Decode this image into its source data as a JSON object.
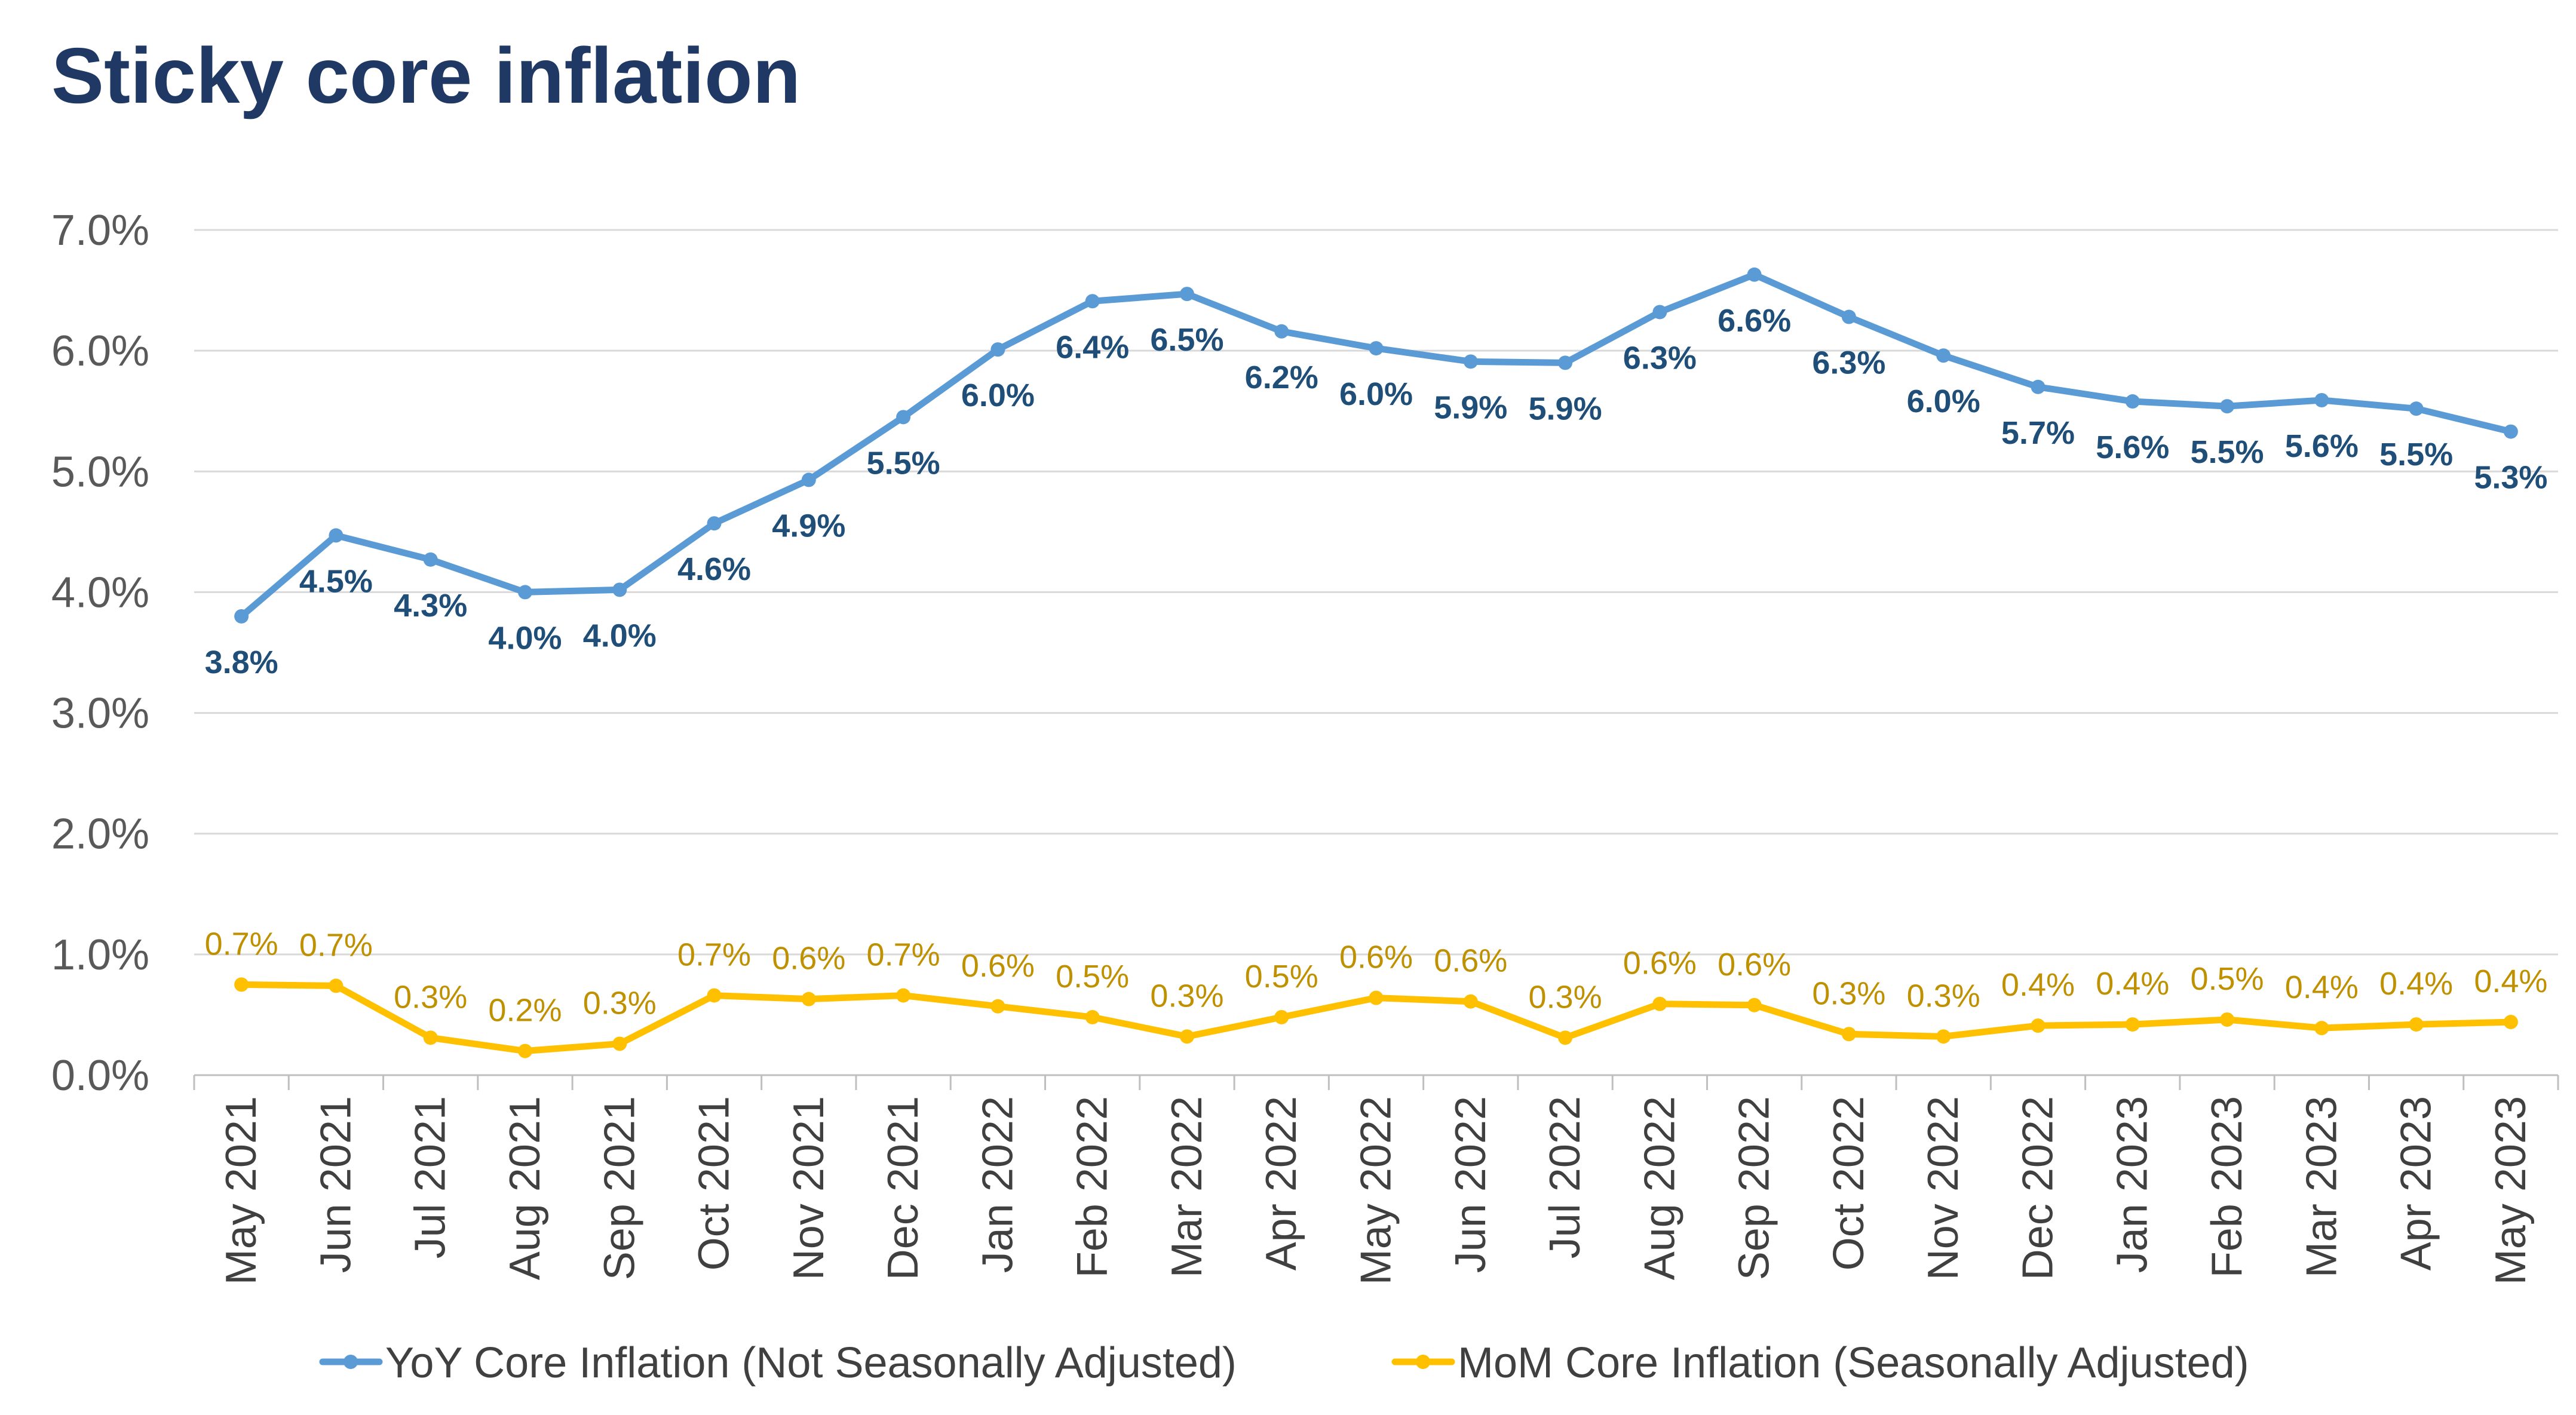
{
  "title": "Sticky core inflation",
  "colors": {
    "yoy_line": "#5b9bd5",
    "yoy_label": "#1f4e79",
    "mom_line": "#ffc000",
    "mom_label": "#bf9000",
    "title": "#1f3864",
    "grid": "#d9d9d9",
    "axis": "#bfbfbf"
  },
  "chart_data": {
    "type": "line",
    "title": "Sticky core inflation",
    "xlabel": "",
    "ylabel": "",
    "ylim": [
      0,
      7
    ],
    "yticks": [
      "0.0%",
      "1.0%",
      "2.0%",
      "3.0%",
      "4.0%",
      "5.0%",
      "6.0%",
      "7.0%"
    ],
    "grid": true,
    "legend_position": "bottom",
    "categories": [
      "May 2021",
      "Jun 2021",
      "Jul 2021",
      "Aug 2021",
      "Sep 2021",
      "Oct 2021",
      "Nov 2021",
      "Dec 2021",
      "Jan 2022",
      "Feb 2022",
      "Mar 2022",
      "Apr 2022",
      "May 2022",
      "Jun 2022",
      "Jul 2022",
      "Aug 2022",
      "Sep 2022",
      "Oct 2022",
      "Nov 2022",
      "Dec 2022",
      "Jan 2023",
      "Feb 2023",
      "Mar 2023",
      "Apr 2023",
      "May 2023"
    ],
    "series": [
      {
        "name": "YoY Core Inflation (Not Seasonally Adjusted)",
        "values": [
          3.8,
          4.47,
          4.27,
          4.0,
          4.02,
          4.57,
          4.93,
          5.45,
          6.01,
          6.41,
          6.47,
          6.16,
          6.02,
          5.91,
          5.9,
          6.32,
          6.63,
          6.28,
          5.96,
          5.7,
          5.58,
          5.54,
          5.59,
          5.52,
          5.33
        ],
        "labels": [
          "3.8%",
          "4.5%",
          "4.3%",
          "4.0%",
          "4.0%",
          "4.6%",
          "4.9%",
          "5.5%",
          "6.0%",
          "6.4%",
          "6.5%",
          "6.2%",
          "6.0%",
          "5.9%",
          "5.9%",
          "6.3%",
          "6.6%",
          "6.3%",
          "6.0%",
          "5.7%",
          "5.6%",
          "5.5%",
          "5.6%",
          "5.5%",
          "5.3%"
        ]
      },
      {
        "name": "MoM Core Inflation (Seasonally Adjusted)",
        "values": [
          0.75,
          0.74,
          0.31,
          0.2,
          0.26,
          0.66,
          0.63,
          0.66,
          0.57,
          0.48,
          0.32,
          0.48,
          0.64,
          0.61,
          0.31,
          0.59,
          0.58,
          0.34,
          0.32,
          0.41,
          0.42,
          0.46,
          0.39,
          0.42,
          0.44
        ],
        "labels": [
          "0.7%",
          "0.7%",
          "0.3%",
          "0.2%",
          "0.3%",
          "0.7%",
          "0.6%",
          "0.7%",
          "0.6%",
          "0.5%",
          "0.3%",
          "0.5%",
          "0.6%",
          "0.6%",
          "0.3%",
          "0.6%",
          "0.6%",
          "0.3%",
          "0.3%",
          "0.4%",
          "0.4%",
          "0.5%",
          "0.4%",
          "0.4%",
          "0.4%"
        ]
      }
    ]
  }
}
